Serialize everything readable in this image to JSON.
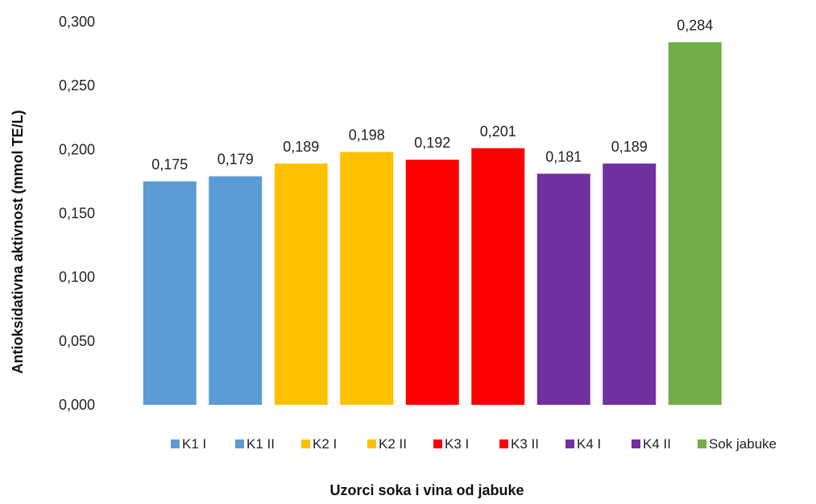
{
  "chart_data": {
    "type": "bar",
    "categories": [
      "K1 I",
      "K1 II",
      "K2 I",
      "K2 II",
      "K3 I",
      "K3 II",
      "K4 I",
      "K4 II",
      "Sok jabuke"
    ],
    "values": [
      0.175,
      0.179,
      0.189,
      0.198,
      0.192,
      0.201,
      0.181,
      0.189,
      0.284
    ],
    "data_labels": [
      "0,175",
      "0,179",
      "0,189",
      "0,198",
      "0,192",
      "0,201",
      "0,181",
      "0,189",
      "0,284"
    ],
    "colors": [
      "#5b9bd5",
      "#5b9bd5",
      "#ffc000",
      "#ffc000",
      "#ff0000",
      "#ff0000",
      "#7030a0",
      "#7030a0",
      "#70ad47"
    ],
    "xlabel": "Uzorci soka i vina od jabuke",
    "ylabel": "Antioksidativna aktivnost (mmol TE/L)",
    "ylim": [
      0,
      0.3
    ],
    "yticks": [
      "0,000",
      "0,050",
      "0,100",
      "0,150",
      "0,200",
      "0,250",
      "0,300"
    ],
    "grid": false,
    "legend_position": "bottom"
  }
}
